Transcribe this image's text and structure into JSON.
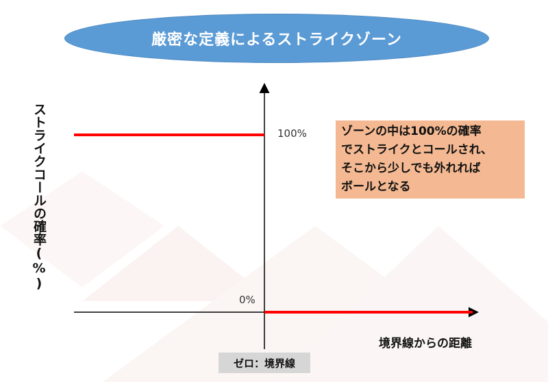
{
  "title": "厳密な定義によるストライクゾーン",
  "y_axis_label": "ストライクコールの確率(%)",
  "x_axis_label": "境界線からの距離",
  "tick_100": "100%",
  "tick_0": "0%",
  "zero_label": "ゼロ：境界線",
  "note": "ゾーンの中は100%の確率\nでストライクとコールされ、\nそこから少しでも外れれば\nボールとなる",
  "colors": {
    "title_fill": "#5b9bd5",
    "line": "#ff0000",
    "axis": "#000000",
    "note_fill": "#f4b992",
    "zero_box": "#d6d6d6"
  }
}
